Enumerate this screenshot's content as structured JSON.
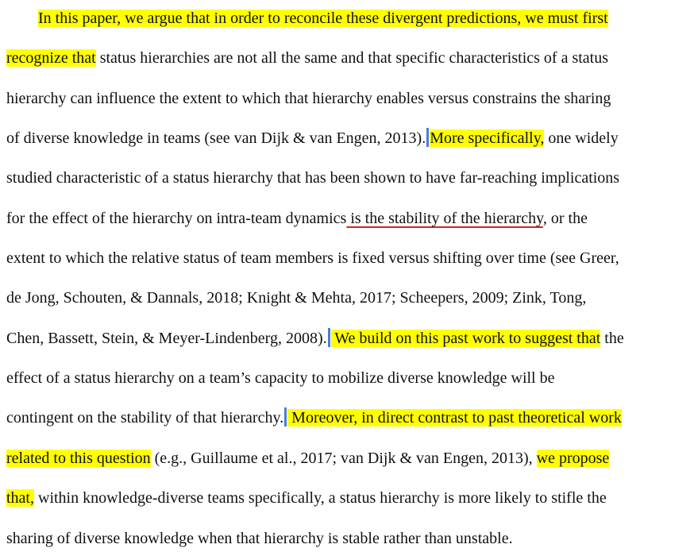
{
  "doc": {
    "lines": [
      [
        {
          "t": "        "
        },
        {
          "t": "In this paper, we argue that in order to reconcile these divergent predictions, we must first",
          "hl": true
        }
      ],
      [
        {
          "t": "recognize that",
          "hl": true
        },
        {
          "t": " status hierarchies are not all the same and that specific characteristics of a status"
        }
      ],
      [
        {
          "t": "hierarchy can influence the extent to which that hierarchy enables versus constrains the sharing"
        }
      ],
      [
        {
          "t": "of diverse knowledge in teams (see van Dijk & van Engen, 2013)."
        },
        {
          "cursor": true
        },
        {
          "t": "More specifically,",
          "hl": true
        },
        {
          "t": " one widely"
        }
      ],
      [
        {
          "t": "studied characteristic of a status hierarchy that has been shown to have far-reaching implications"
        }
      ],
      [
        {
          "t": "for the effect of the hierarchy on intra-team dynamics"
        },
        {
          "t": " is the stability of the hierarchy",
          "ul": true
        },
        {
          "t": ", or the"
        }
      ],
      [
        {
          "t": "extent to which the relative status of team members is fixed versus shifting over time (see Greer,"
        }
      ],
      [
        {
          "t": "de Jong, Schouten, & Dannals, 2018; Knight & Mehta, 2017; Scheepers, 2009; Zink, Tong,"
        }
      ],
      [
        {
          "t": "Chen, Bassett, Stein, & Meyer-Lindenberg, 2008)."
        },
        {
          "cursor": true
        },
        {
          "t": " We build on this past work to suggest that",
          "hl": true
        },
        {
          "t": " the"
        }
      ],
      [
        {
          "t": "effect of a status hierarchy on a team’s capacity to mobilize diverse knowledge will be"
        }
      ],
      [
        {
          "t": "contingent on the stability of that hierarchy."
        },
        {
          "cursor": true
        },
        {
          "t": " Moreover, in direct contrast to past theoretical work",
          "hl": true
        }
      ],
      [
        {
          "t": "related to this question",
          "hl": true
        },
        {
          "t": " (e.g., Guillaume et al., 2017; van Dijk & van Engen, 2013), "
        },
        {
          "t": "we propose",
          "hl": true
        }
      ],
      [
        {
          "t": "that,",
          "hl": true
        },
        {
          "t": " within knowledge-diverse teams specifically, a status hierarchy is more likely to stifle the"
        }
      ],
      [
        {
          "t": "sharing of diverse knowledge when that hierarchy is stable rather than unstable."
        }
      ]
    ]
  }
}
